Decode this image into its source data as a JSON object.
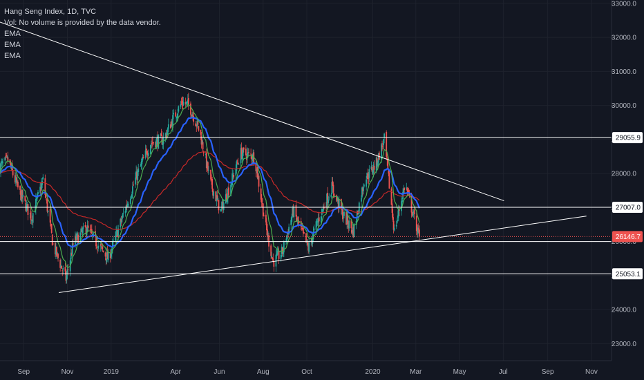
{
  "header": {
    "title": "Hang Seng Index, 1D, TVC",
    "volume_note": "Vol: No volume is provided by the data vendor.",
    "indicators": [
      "EMA",
      "EMA",
      "EMA"
    ]
  },
  "colors": {
    "background": "#131722",
    "bull": "#26a69a",
    "bear": "#ef5350",
    "ema_fast": "#4caf50",
    "ema_mid": "#2962ff",
    "ema_slow": "#c62828",
    "trendline": "#ffffff",
    "current_price": "#ef5350"
  },
  "chart_data": {
    "type": "candlestick",
    "symbol": "Hang Seng Index",
    "interval": "1D",
    "source": "TVC",
    "y_axis_ticks": [
      "23000.0",
      "24000.0",
      "25000.0",
      "26000.0",
      "27000.0",
      "28000.0",
      "29000.0",
      "30000.0",
      "31000.0",
      "32000.0",
      "33000.0"
    ],
    "ylim": [
      22500,
      33100
    ],
    "x_axis_ticks": [
      "Sep",
      "Nov",
      "2019",
      "Apr",
      "Jun",
      "Aug",
      "Oct",
      "2020",
      "Mar",
      "May",
      "Jul",
      "Sep",
      "Nov"
    ],
    "x_tick_dates": [
      "2018-09-01",
      "2018-11-01",
      "2019-01-01",
      "2019-04-01",
      "2019-06-01",
      "2019-08-01",
      "2019-10-01",
      "2020-01-01",
      "2020-03-01",
      "2020-05-01",
      "2020-07-01",
      "2020-09-01",
      "2020-11-01"
    ],
    "xlim": [
      "2018-07-30",
      "2020-11-29"
    ],
    "horizontal_levels": [
      {
        "value": 29055.9,
        "label": "29055.9"
      },
      {
        "value": 27007.0,
        "label": "27007.0"
      },
      {
        "value": 25053.1,
        "label": "25053.1"
      },
      {
        "value": 26000.0,
        "label": ""
      }
    ],
    "current_price": {
      "value": 26146.7,
      "label": "26146.7"
    },
    "trendlines": [
      {
        "points": [
          [
            "2018-07-30",
            32450
          ],
          [
            "2020-07-02",
            27200
          ]
        ]
      },
      {
        "points": [
          [
            "2018-10-20",
            24500
          ],
          [
            "2020-10-25",
            26750
          ]
        ]
      }
    ],
    "price_anchors": [
      [
        "2018-07-30",
        28200
      ],
      [
        "2018-08-10",
        28400
      ],
      [
        "2018-08-25",
        27500
      ],
      [
        "2018-09-12",
        26700
      ],
      [
        "2018-09-28",
        27800
      ],
      [
        "2018-10-12",
        25900
      ],
      [
        "2018-10-30",
        24900
      ],
      [
        "2018-11-10",
        26000
      ],
      [
        "2018-11-28",
        26400
      ],
      [
        "2018-12-10",
        26000
      ],
      [
        "2018-12-28",
        25500
      ],
      [
        "2019-01-15",
        26600
      ],
      [
        "2019-02-05",
        27900
      ],
      [
        "2019-02-25",
        28900
      ],
      [
        "2019-03-15",
        29000
      ],
      [
        "2019-03-28",
        29600
      ],
      [
        "2019-04-10",
        30100
      ],
      [
        "2019-04-20",
        30000
      ],
      [
        "2019-05-05",
        29200
      ],
      [
        "2019-05-20",
        27700
      ],
      [
        "2019-06-03",
        26900
      ],
      [
        "2019-06-15",
        27600
      ],
      [
        "2019-07-01",
        28600
      ],
      [
        "2019-07-20",
        28500
      ],
      [
        "2019-08-05",
        26400
      ],
      [
        "2019-08-15",
        25400
      ],
      [
        "2019-08-28",
        25700
      ],
      [
        "2019-09-12",
        26900
      ],
      [
        "2019-10-03",
        25800
      ],
      [
        "2019-10-18",
        26700
      ],
      [
        "2019-11-05",
        27600
      ],
      [
        "2019-11-20",
        26800
      ],
      [
        "2019-12-05",
        26300
      ],
      [
        "2019-12-20",
        27800
      ],
      [
        "2020-01-06",
        28300
      ],
      [
        "2020-01-17",
        29000
      ],
      [
        "2020-01-31",
        26300
      ],
      [
        "2020-02-15",
        27700
      ],
      [
        "2020-02-25",
        26900
      ],
      [
        "2020-03-06",
        26146.7
      ]
    ]
  }
}
